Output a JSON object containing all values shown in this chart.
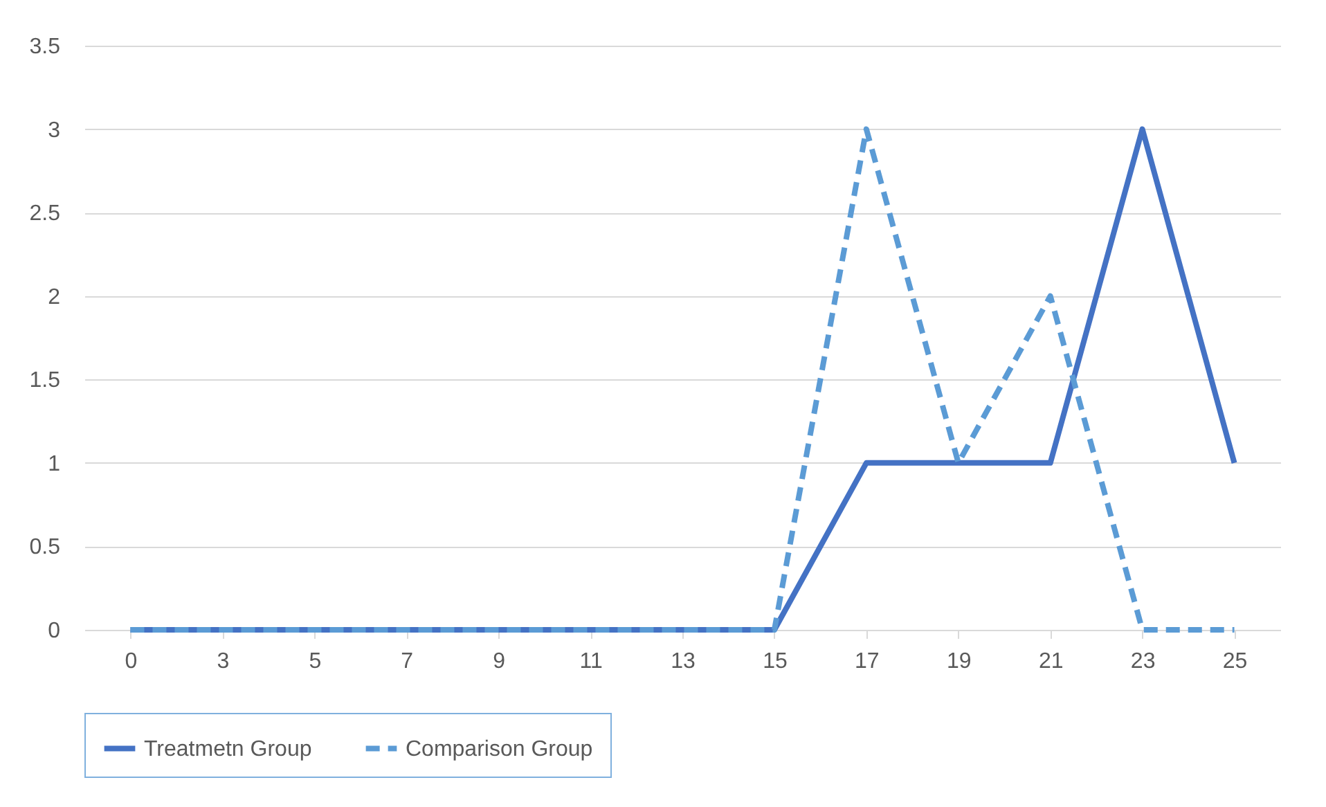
{
  "chart_data": {
    "type": "line",
    "categories": [
      "0",
      "3",
      "5",
      "7",
      "9",
      "11",
      "13",
      "15",
      "17",
      "19",
      "21",
      "23",
      "25"
    ],
    "series": [
      {
        "name": "Treatmetn Group",
        "color": "#4472c4",
        "line_style": "solid",
        "values": [
          0,
          0,
          0,
          0,
          0,
          0,
          0,
          0,
          1,
          1,
          1,
          3,
          1
        ]
      },
      {
        "name": "Comparison Group",
        "color": "#5b9bd5",
        "line_style": "dashed",
        "values": [
          0,
          0,
          0,
          0,
          0,
          0,
          0,
          0,
          3,
          1,
          2,
          0,
          0
        ]
      }
    ],
    "ylim": [
      0,
      3.5
    ],
    "yticks": [
      0,
      0.5,
      1,
      1.5,
      2,
      2.5,
      3,
      3.5
    ],
    "grid": "y",
    "legend": "bottom",
    "marker": "none"
  }
}
